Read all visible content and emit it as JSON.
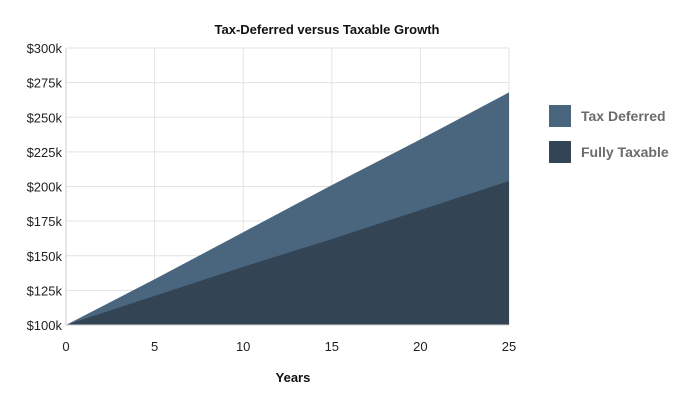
{
  "chart_data": {
    "type": "area",
    "title": "Tax-Deferred versus Taxable Growth",
    "xlabel": "Years",
    "ylabel": "",
    "xlim": [
      0,
      25
    ],
    "ylim": [
      100000,
      300000
    ],
    "x_ticks": [
      0,
      5,
      10,
      15,
      20,
      25
    ],
    "x_tick_labels": [
      "0",
      "5",
      "10",
      "15",
      "20",
      "25"
    ],
    "y_ticks": [
      100000,
      125000,
      150000,
      175000,
      200000,
      225000,
      250000,
      275000,
      300000
    ],
    "y_tick_labels": [
      "$100k",
      "$125k",
      "$150k",
      "$175k",
      "$200k",
      "$225k",
      "$250k",
      "$275k",
      "$300k"
    ],
    "grid": true,
    "legend_position": "right",
    "x": [
      0,
      5,
      10,
      15,
      20,
      25
    ],
    "series": [
      {
        "name": "Tax Deferred",
        "color": "#4a657e",
        "values": [
          100000,
          133000,
          167000,
          201000,
          234000,
          268000
        ]
      },
      {
        "name": "Fully Taxable",
        "color": "#334555",
        "values": [
          100000,
          121000,
          142000,
          162000,
          183000,
          204000
        ]
      }
    ]
  }
}
